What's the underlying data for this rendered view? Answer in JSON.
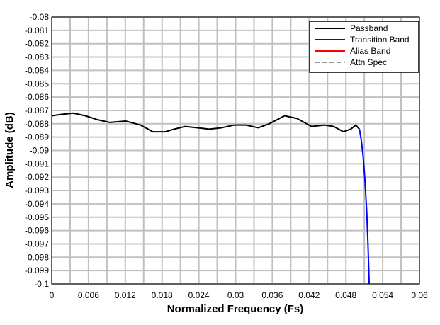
{
  "chart_data": {
    "type": "line",
    "xlabel": "Normalized Frequency (Fs)",
    "ylabel": "Amplitude (dB)",
    "xlim": [
      0,
      0.06
    ],
    "ylim": [
      -0.1,
      -0.08
    ],
    "xticks": [
      0,
      0.006,
      0.012,
      0.018,
      0.024,
      0.03,
      0.036,
      0.042,
      0.048,
      0.054,
      0.06
    ],
    "xminor": [
      0.003,
      0.009,
      0.015,
      0.021,
      0.027,
      0.033,
      0.039,
      0.045,
      0.051,
      0.057
    ],
    "yticks": [
      -0.08,
      -0.081,
      -0.082,
      -0.083,
      -0.084,
      -0.085,
      -0.086,
      -0.087,
      -0.088,
      -0.089,
      -0.09,
      -0.091,
      -0.092,
      -0.093,
      -0.094,
      -0.095,
      -0.096,
      -0.097,
      -0.098,
      -0.099,
      -0.1
    ],
    "grid": true,
    "legend": "upper right",
    "series": [
      {
        "name": "Passband",
        "color": "#000000",
        "dash": false,
        "x": [
          0,
          0.0015,
          0.0035,
          0.0055,
          0.0075,
          0.0095,
          0.0121,
          0.0145,
          0.0165,
          0.0185,
          0.02,
          0.0218,
          0.0238,
          0.0257,
          0.0277,
          0.0297,
          0.0317,
          0.0337,
          0.0355,
          0.038,
          0.04,
          0.0424,
          0.0445,
          0.046,
          0.0476,
          0.0488,
          0.0496,
          0.0502
        ],
        "values": [
          -0.0874,
          -0.0873,
          -0.0872,
          -0.0874,
          -0.0877,
          -0.0879,
          -0.0878,
          -0.0881,
          -0.0886,
          -0.0886,
          -0.0884,
          -0.0882,
          -0.0883,
          -0.0884,
          -0.0883,
          -0.0881,
          -0.0881,
          -0.0883,
          -0.088,
          -0.0874,
          -0.0876,
          -0.0882,
          -0.0881,
          -0.0882,
          -0.0886,
          -0.0884,
          -0.0881,
          -0.0884
        ]
      },
      {
        "name": "Transition Band",
        "color": "#0000ff",
        "dash": false,
        "x": [
          0.0502,
          0.0505,
          0.0508,
          0.0511,
          0.0514,
          0.0516,
          0.0518
        ],
        "values": [
          -0.0884,
          -0.0892,
          -0.0904,
          -0.0922,
          -0.0946,
          -0.097,
          -0.1
        ]
      },
      {
        "name": "Alias Band",
        "color": "#ff0000",
        "dash": false,
        "x": [],
        "values": []
      },
      {
        "name": "Attn Spec",
        "color": "#999999",
        "dash": true,
        "x": [],
        "values": []
      }
    ]
  }
}
